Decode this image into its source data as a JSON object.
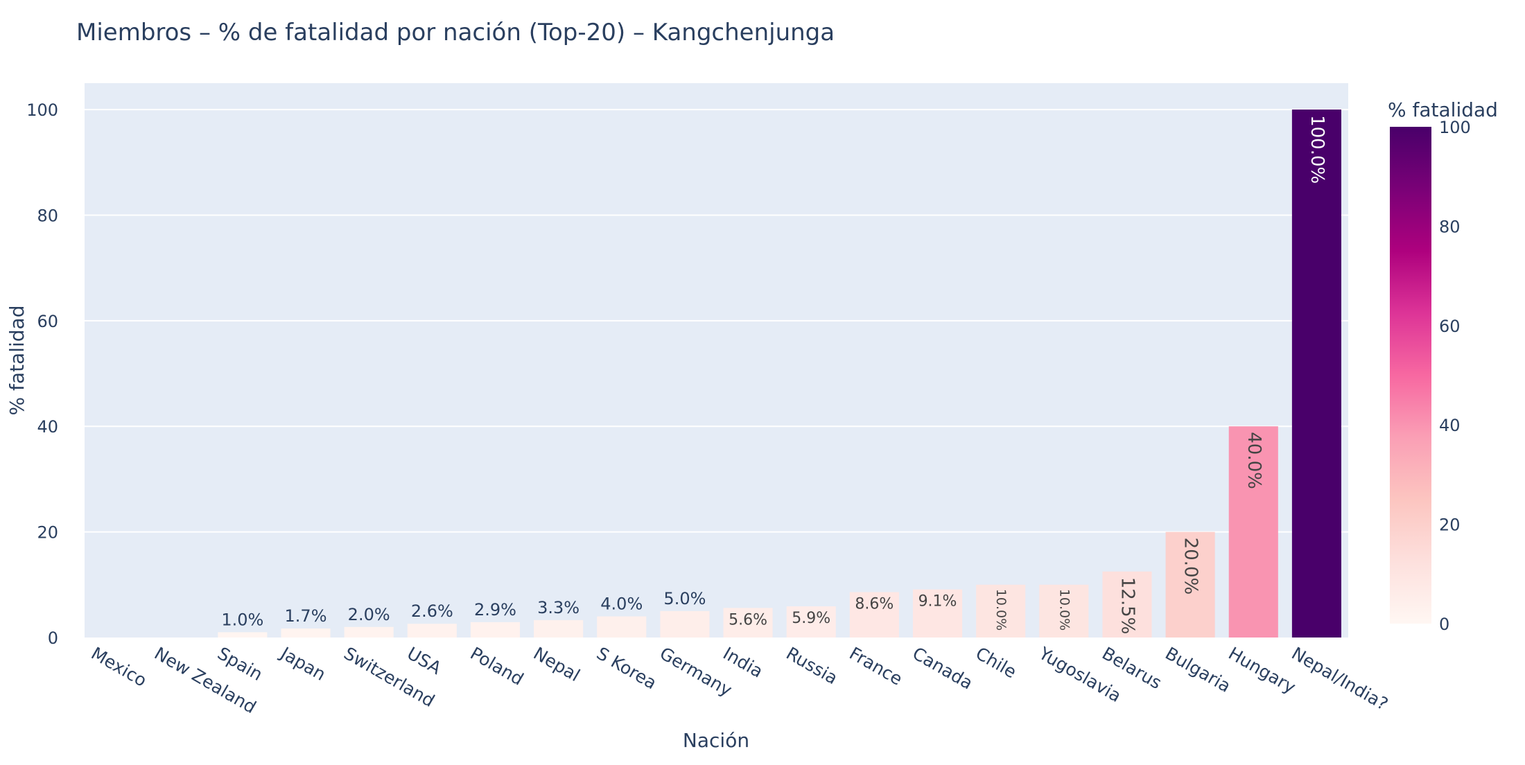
{
  "chart_data": {
    "type": "bar",
    "title": "Miembros – % de fatalidad por nación (Top-20) – Kangchenjunga",
    "xlabel": "Nación",
    "ylabel": "% fatalidad",
    "ylim": [
      0,
      105
    ],
    "yticks": [
      "0",
      "20",
      "40",
      "60",
      "80",
      "100"
    ],
    "categories": [
      "Mexico",
      "New Zealand",
      "Spain",
      "Japan",
      "Switzerland",
      "USA",
      "Poland",
      "Nepal",
      "S Korea",
      "Germany",
      "India",
      "Russia",
      "France",
      "Canada",
      "Chile",
      "Yugoslavia",
      "Belarus",
      "Bulgaria",
      "Hungary",
      "Nepal/India?"
    ],
    "values": [
      0,
      0,
      1.0,
      1.7,
      2.0,
      2.6,
      2.9,
      3.3,
      4.0,
      5.0,
      5.6,
      5.9,
      8.6,
      9.1,
      10.0,
      10.0,
      12.5,
      20.0,
      40.0,
      100.0
    ],
    "labels": [
      "",
      "",
      "1.0%",
      "1.7%",
      "2.0%",
      "2.6%",
      "2.9%",
      "3.3%",
      "4.0%",
      "5.0%",
      "5.6%",
      "5.9%",
      "8.6%",
      "9.1%",
      "10.0%",
      "10.0%",
      "12.5%",
      "20.0%",
      "40.0%",
      "100.0%"
    ],
    "grid": true,
    "colorbar": {
      "title": "% fatalidad",
      "range": [
        0,
        100
      ],
      "ticks": [
        "0",
        "20",
        "40",
        "60",
        "80",
        "100"
      ],
      "colorscale": [
        "#fff7f3",
        "#fde0dd",
        "#fcc5c0",
        "#fa9fb5",
        "#f768a1",
        "#dd3497",
        "#ae017e",
        "#7a0177",
        "#49006a"
      ]
    },
    "colors": {
      "plot_bg": "#e5ecf6",
      "grid": "#ffffff",
      "text": "#2a3f5f",
      "dark_label": "#444444",
      "light_label": "#ffffff"
    }
  }
}
